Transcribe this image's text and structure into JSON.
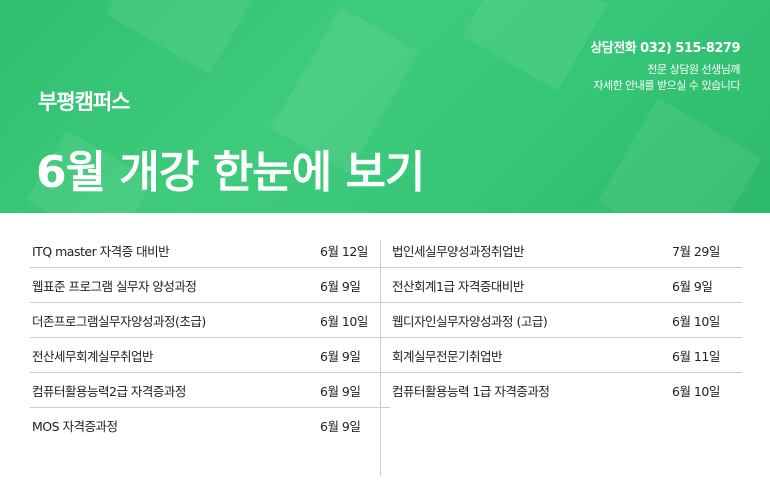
{
  "header": {
    "campus": "부평캠퍼스",
    "title": "6월  개강 한눈에 보기",
    "phone": "상담전화 032) 515-8279",
    "desc1": "전문 상담원 선생님께",
    "desc2": "자세한 안내를 받으실 수 있습니다",
    "color": "#3cc47c"
  },
  "left": [
    {
      "name": "ITQ master 자격증 대비반",
      "date": "6월 12일"
    },
    {
      "name": "웹표준 프로그램 실무자 양성과정",
      "date": "6월 9일"
    },
    {
      "name": "더존프로그램실무자양성과정(초급)",
      "date": "6월 10일"
    },
    {
      "name": "전산세무회계실무취업반",
      "date": "6월 9일"
    },
    {
      "name": "컴퓨터활용능력2급 자격증과정",
      "date": "6월 9일"
    },
    {
      "name": "MOS 자격증과정",
      "date": "6월 9일"
    }
  ],
  "right": [
    {
      "name": "법인세실무양성과정취업반",
      "date": "7월 29일"
    },
    {
      "name": "전산회계1급 자격증대비반",
      "date": "6월 9일"
    },
    {
      "name": "웹디자인실무자양성과정 (고급)",
      "date": "6월 10일"
    },
    {
      "name": "회계실무전문기취업반",
      "date": "6월 11일"
    },
    {
      "name": "컴퓨터활용능력 1급 자격증과정",
      "date": "6월 10일"
    }
  ]
}
